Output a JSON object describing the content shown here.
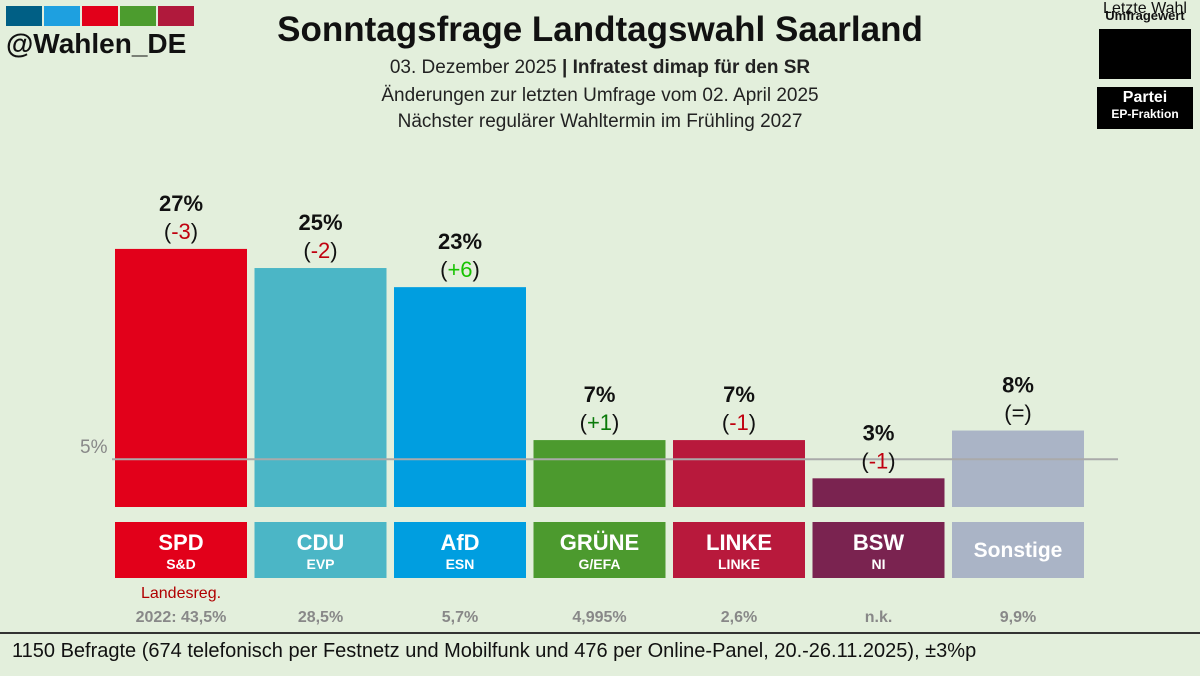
{
  "header": {
    "handle": "@Wahlen_DE",
    "brand_colors": [
      "#005f85",
      "#1ea0e0",
      "#e2001a",
      "#4c9c2e",
      "#b0193c"
    ],
    "title": "Sonntagsfrage Landtagswahl Saarland",
    "date": "03. Dezember 2025",
    "separator": "|",
    "institute": "Infratest dimap für den SR",
    "changes_note": "Änderungen zur letzten Umfrage vom 02. April 2025",
    "next_election": "Nächster regulärer Wahltermin im Frühling 2027"
  },
  "legend": {
    "poll_value_label": "Umfragewert",
    "party_label": "Partei",
    "faction_label": "EP-Fraktion",
    "last_election_label": "Letzte Wahl"
  },
  "chart_data": {
    "type": "bar",
    "threshold_label": "5%",
    "threshold_value": 5,
    "ylim": [
      0,
      30
    ],
    "categories": [
      "SPD",
      "CDU",
      "AfD",
      "GRÜNE",
      "LINKE",
      "BSW",
      "Sonstige"
    ],
    "values": [
      27,
      25,
      23,
      7,
      7,
      3,
      8
    ],
    "value_labels": [
      "27%",
      "25%",
      "23%",
      "7%",
      "7%",
      "3%",
      "8%"
    ],
    "changes": [
      "-3",
      "-2",
      "+6",
      "+1",
      "-1",
      "-1",
      "="
    ],
    "change_colors": [
      "#c0000f",
      "#c0000f",
      "#17c300",
      "#0a7a0a",
      "#c0000f",
      "#c0000f",
      "#111111"
    ],
    "factions": [
      "S&D",
      "EVP",
      "ESN",
      "G/EFA",
      "LINKE",
      "NI",
      ""
    ],
    "colors": [
      "#e2001a",
      "#4bb6c6",
      "#009ee0",
      "#4c9a2e",
      "#b8193c",
      "#7a2350",
      "#aab4c6"
    ],
    "government_note": "Landesreg.",
    "government_note_color": "#b00000",
    "last_election": [
      "2022: 43,5%",
      "28,5%",
      "5,7%",
      "4,995%",
      "2,6%",
      "n.k.",
      "9,9%"
    ]
  },
  "footer": {
    "text": "1150 Befragte (674 telefonisch per Festnetz und Mobilfunk und 476 per Online-Panel, 20.-26.11.2025), ±3%p"
  }
}
